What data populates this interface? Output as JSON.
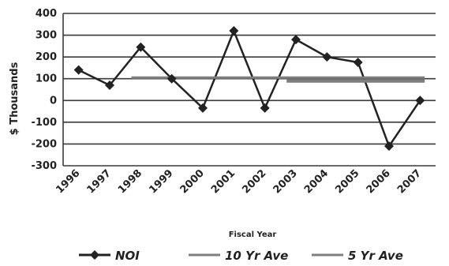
{
  "chart_data": {
    "type": "line",
    "categories": [
      "1996",
      "1997",
      "1998",
      "1999",
      "2000",
      "2001",
      "2002",
      "2003",
      "2004",
      "2005",
      "2006",
      "2007"
    ],
    "series": [
      {
        "name": "NOI",
        "values": [
          140,
          70,
          245,
          100,
          -35,
          320,
          -35,
          280,
          200,
          175,
          -210,
          0
        ],
        "color": "#222222",
        "marker": "diamond"
      },
      {
        "name": "10 Yr Ave",
        "values": [
          null,
          null,
          105,
          105,
          105,
          105,
          105,
          105,
          105,
          105,
          105,
          105
        ],
        "color": "#7f7f7f"
      },
      {
        "name": "5 Yr Ave",
        "values": [
          null,
          null,
          null,
          null,
          null,
          null,
          null,
          90,
          90,
          90,
          90,
          90
        ],
        "color": "#7f7f7f"
      }
    ],
    "xlabel": "Fiscal Year",
    "ylabel": "$ Thousands",
    "ylim": [
      -300,
      400
    ],
    "yticks": [
      "400",
      "300",
      "200",
      "100",
      "0",
      "-100",
      "-200",
      "-300"
    ],
    "grid": true,
    "legend_position": "bottom"
  }
}
